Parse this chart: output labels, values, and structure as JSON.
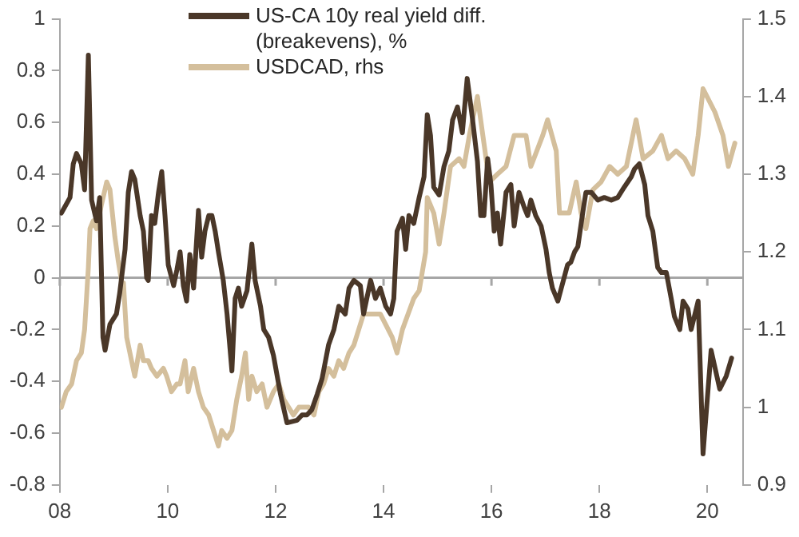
{
  "chart_data": {
    "type": "line",
    "x": [
      2008.03,
      2008.19,
      2008.25,
      2008.31,
      2008.4,
      2008.46,
      2008.53,
      2008.59,
      2008.68,
      2008.74,
      2008.8,
      2008.84,
      2008.93,
      2009.05,
      2009.11,
      2009.21,
      2009.27,
      2009.33,
      2009.39,
      2009.49,
      2009.55,
      2009.61,
      2009.64,
      2009.7,
      2009.76,
      2009.83,
      2009.89,
      2009.95,
      2010.01,
      2010.11,
      2010.17,
      2010.23,
      2010.29,
      2010.35,
      2010.41,
      2010.48,
      2010.57,
      2010.63,
      2010.69,
      2010.76,
      2010.82,
      2010.88,
      2010.94,
      2011.03,
      2011.1,
      2011.19,
      2011.25,
      2011.31,
      2011.37,
      2011.47,
      2011.56,
      2011.62,
      2011.72,
      2011.78,
      2011.87,
      2011.96,
      2012.09,
      2012.21,
      2012.4,
      2012.49,
      2012.58,
      2012.67,
      2012.77,
      2012.86,
      2012.98,
      2013.08,
      2013.17,
      2013.29,
      2013.36,
      2013.45,
      2013.57,
      2013.63,
      2013.76,
      2013.85,
      2013.94,
      2014.04,
      2014.13,
      2014.19,
      2014.25,
      2014.35,
      2014.41,
      2014.47,
      2014.56,
      2014.66,
      2014.75,
      2014.81,
      2014.87,
      2014.93,
      2015.03,
      2015.12,
      2015.21,
      2015.28,
      2015.37,
      2015.46,
      2015.55,
      2015.65,
      2015.74,
      2015.8,
      2015.86,
      2015.93,
      2015.99,
      2016.05,
      2016.11,
      2016.17,
      2016.27,
      2016.36,
      2016.42,
      2016.51,
      2016.61,
      2016.67,
      2016.73,
      2016.82,
      2016.92,
      2017.01,
      2017.07,
      2017.13,
      2017.23,
      2017.32,
      2017.41,
      2017.47,
      2017.54,
      2017.6,
      2017.69,
      2017.75,
      2017.85,
      2017.97,
      2018.09,
      2018.22,
      2018.34,
      2018.46,
      2018.59,
      2018.65,
      2018.74,
      2018.84,
      2018.9,
      2018.99,
      2019.08,
      2019.15,
      2019.24,
      2019.33,
      2019.39,
      2019.49,
      2019.55,
      2019.64,
      2019.7,
      2019.83,
      2019.92,
      2020.07,
      2020.23,
      2020.35,
      2020.45
    ],
    "series": [
      {
        "name": "US-CA 10y real yield diff. (breakevens), %",
        "color": "#4a3728",
        "values": [
          0.25,
          0.31,
          0.44,
          0.48,
          0.44,
          0.34,
          0.86,
          0.3,
          0.22,
          0.31,
          -0.23,
          -0.28,
          -0.18,
          -0.14,
          -0.06,
          0.11,
          0.33,
          0.41,
          0.38,
          0.24,
          0.18,
          0,
          -0.01,
          0.24,
          0.21,
          0.33,
          0.41,
          0.24,
          0.05,
          -0.03,
          0.03,
          0.1,
          -0.03,
          -0.09,
          0.09,
          -0.04,
          0.26,
          0.08,
          0.18,
          0.24,
          0.24,
          0.18,
          0.1,
          -0.01,
          -0.14,
          -0.36,
          -0.08,
          -0.04,
          -0.11,
          -0.05,
          0.13,
          -0.01,
          -0.11,
          -0.2,
          -0.23,
          -0.3,
          -0.45,
          -0.56,
          -0.55,
          -0.53,
          -0.53,
          -0.51,
          -0.45,
          -0.39,
          -0.26,
          -0.2,
          -0.11,
          -0.14,
          -0.04,
          -0.01,
          -0.03,
          -0.14,
          -0.01,
          -0.08,
          -0.04,
          -0.11,
          -0.14,
          -0.08,
          0.18,
          0.23,
          0.11,
          0.24,
          0.21,
          0.31,
          0.39,
          0.63,
          0.55,
          0.35,
          0.32,
          0.43,
          0.49,
          0.61,
          0.66,
          0.56,
          0.77,
          0.61,
          0.45,
          0.24,
          0.24,
          0.46,
          0.36,
          0.18,
          0.25,
          0.13,
          0.33,
          0.36,
          0.2,
          0.33,
          0.27,
          0.24,
          0.3,
          0.24,
          0.2,
          0.11,
          0.02,
          -0.04,
          -0.09,
          -0.02,
          0.05,
          0.06,
          0.1,
          0.12,
          0.25,
          0.33,
          0.33,
          0.3,
          0.31,
          0.3,
          0.31,
          0.35,
          0.39,
          0.42,
          0.44,
          0.36,
          0.24,
          0.18,
          0.04,
          0.02,
          0.02,
          -0.08,
          -0.15,
          -0.2,
          -0.09,
          -0.12,
          -0.2,
          -0.09,
          -0.68,
          -0.28,
          -0.43,
          -0.38,
          -0.31
        ]
      },
      {
        "name": "USDCAD, rhs",
        "color": "#d4bf9c",
        "axis": "y2",
        "x": [
          2008.03,
          2008.12,
          2008.22,
          2008.31,
          2008.4,
          2008.46,
          2008.53,
          2008.56,
          2008.62,
          2008.68,
          2008.77,
          2008.87,
          2008.93,
          2009.02,
          2009.08,
          2009.15,
          2009.18,
          2009.24,
          2009.33,
          2009.39,
          2009.49,
          2009.55,
          2009.64,
          2009.7,
          2009.8,
          2009.92,
          2009.98,
          2010.07,
          2010.17,
          2010.23,
          2010.32,
          2010.38,
          2010.48,
          2010.57,
          2010.66,
          2010.76,
          2010.85,
          2010.94,
          2011.0,
          2011.1,
          2011.19,
          2011.28,
          2011.37,
          2011.44,
          2011.5,
          2011.56,
          2011.65,
          2011.75,
          2011.84,
          2011.96,
          2012.06,
          2012.15,
          2012.24,
          2012.33,
          2012.43,
          2012.52,
          2012.61,
          2012.71,
          2012.8,
          2012.89,
          2012.98,
          2013.08,
          2013.17,
          2013.26,
          2013.36,
          2013.45,
          2013.54,
          2013.63,
          2013.94,
          2014.16,
          2014.25,
          2014.35,
          2014.56,
          2014.66,
          2014.78,
          2014.81,
          2014.93,
          2015.03,
          2015.12,
          2015.24,
          2015.4,
          2015.49,
          2015.59,
          2015.74,
          2015.86,
          2015.96,
          2016.11,
          2016.27,
          2016.42,
          2016.64,
          2016.73,
          2016.95,
          2017.04,
          2017.2,
          2017.26,
          2017.44,
          2017.57,
          2017.66,
          2017.75,
          2017.88,
          2018.03,
          2018.19,
          2018.34,
          2018.5,
          2018.68,
          2018.81,
          2018.99,
          2019.15,
          2019.27,
          2019.42,
          2019.58,
          2019.73,
          2019.83,
          2019.92,
          2020.14,
          2020.29,
          2020.39,
          2020.51
        ],
        "values": [
          1.0,
          1.02,
          1.03,
          1.06,
          1.07,
          1.1,
          1.18,
          1.23,
          1.24,
          1.23,
          1.26,
          1.29,
          1.28,
          1.22,
          1.19,
          1.16,
          1.16,
          1.09,
          1.06,
          1.04,
          1.08,
          1.06,
          1.06,
          1.05,
          1.04,
          1.05,
          1.04,
          1.02,
          1.03,
          1.03,
          1.06,
          1.02,
          1.05,
          1.02,
          1.0,
          0.99,
          0.97,
          0.95,
          0.97,
          0.96,
          0.97,
          1.01,
          1.04,
          1.07,
          1.01,
          1.04,
          1.02,
          1.03,
          1.0,
          1.02,
          1.03,
          1.01,
          1.0,
          0.99,
          1.0,
          1.0,
          1.0,
          0.99,
          1.02,
          1.03,
          1.05,
          1.04,
          1.06,
          1.05,
          1.07,
          1.08,
          1.1,
          1.12,
          1.12,
          1.09,
          1.07,
          1.1,
          1.14,
          1.15,
          1.2,
          1.27,
          1.25,
          1.21,
          1.25,
          1.31,
          1.32,
          1.31,
          1.35,
          1.4,
          1.34,
          1.29,
          1.3,
          1.31,
          1.35,
          1.35,
          1.31,
          1.35,
          1.37,
          1.33,
          1.25,
          1.25,
          1.29,
          1.25,
          1.23,
          1.28,
          1.29,
          1.31,
          1.3,
          1.31,
          1.37,
          1.32,
          1.33,
          1.35,
          1.32,
          1.33,
          1.32,
          1.3,
          1.35,
          1.41,
          1.38,
          1.35,
          1.31,
          1.34
        ]
      }
    ],
    "xlim": [
      2008,
      2020.66
    ],
    "xticks": [
      {
        "value": 2008,
        "label": "08"
      },
      {
        "value": 2010,
        "label": "10"
      },
      {
        "value": 2012,
        "label": "12"
      },
      {
        "value": 2014,
        "label": "14"
      },
      {
        "value": 2016,
        "label": "16"
      },
      {
        "value": 2018,
        "label": "18"
      },
      {
        "value": 2020,
        "label": "20"
      }
    ],
    "ylim": [
      -0.8,
      1
    ],
    "yticks": [
      -0.8,
      -0.6,
      -0.4,
      -0.2,
      0,
      0.2,
      0.4,
      0.6,
      0.8,
      1
    ],
    "y2lim": [
      0.9,
      1.5
    ],
    "y2ticks": [
      0.9,
      1,
      1.1,
      1.2,
      1.3,
      1.4,
      1.5
    ],
    "ref_lines": [
      {
        "axis": "y",
        "value": 0,
        "color": "#a6a6a6"
      }
    ],
    "grid": false,
    "legend": "top left",
    "marker": "none",
    "line_style": "solid"
  }
}
